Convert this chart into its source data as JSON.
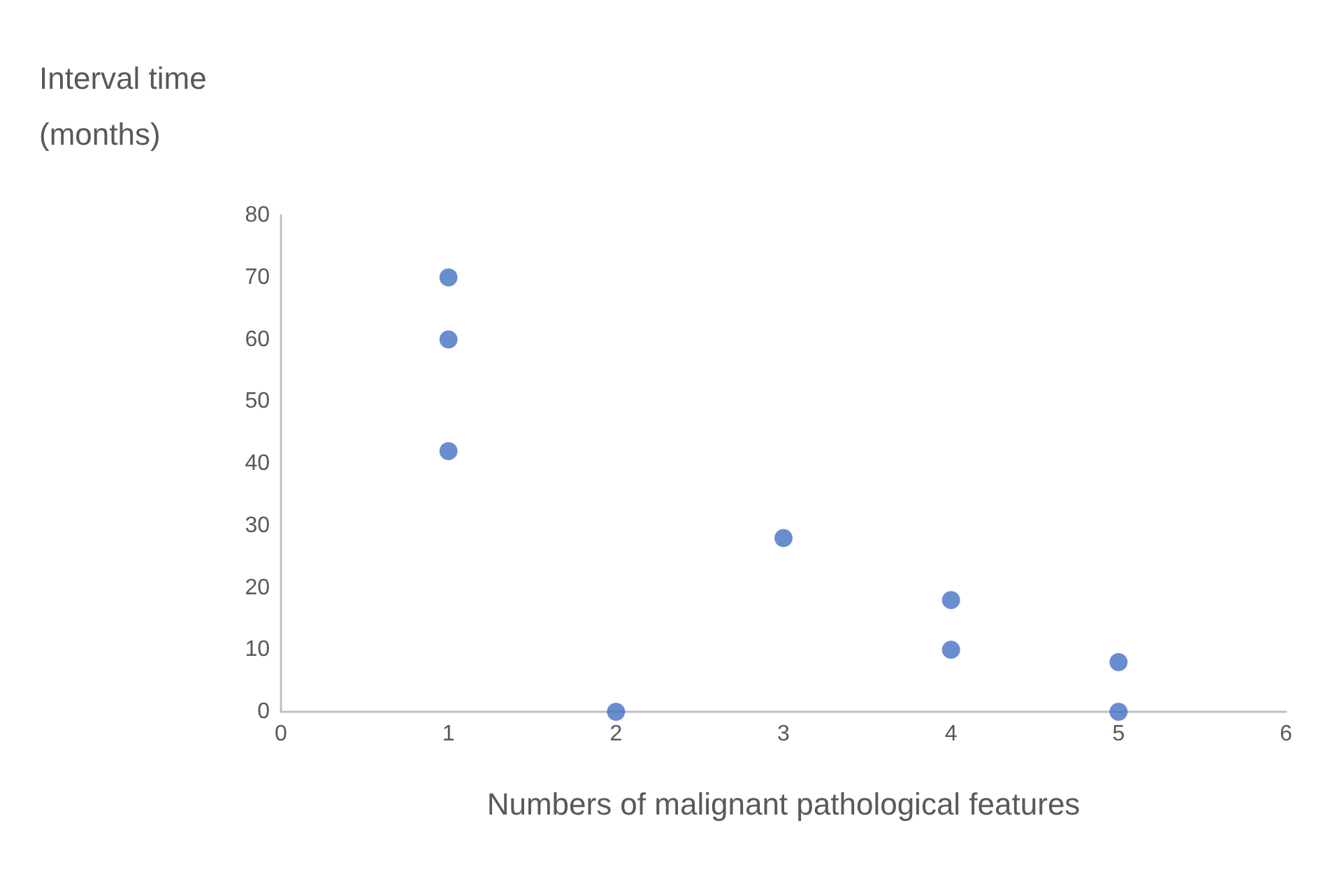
{
  "chart_data": {
    "type": "scatter",
    "xlabel": "Numbers of malignant pathological features",
    "ylabel": "Interval time\n(months)",
    "x": [
      1,
      1,
      1,
      2,
      3,
      4,
      4,
      5,
      5
    ],
    "values": [
      70,
      60,
      42,
      0,
      28,
      18,
      10,
      8,
      0
    ],
    "color": "#4472c4",
    "marker": "circle",
    "grid": false,
    "xlim": [
      0,
      6
    ],
    "xticks": [
      0,
      1,
      2,
      3,
      4,
      5,
      6
    ],
    "ylim": [
      0,
      80
    ],
    "yticks": [
      0,
      10,
      20,
      30,
      40,
      50,
      60,
      70,
      80
    ]
  }
}
